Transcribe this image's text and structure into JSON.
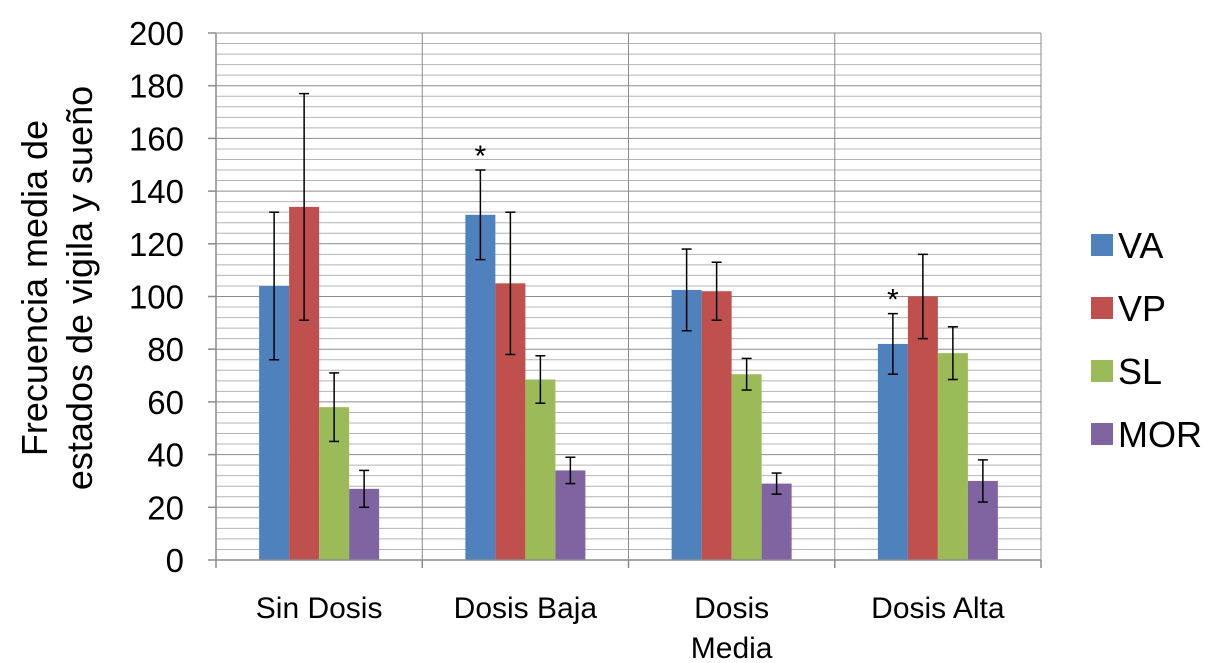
{
  "chart_data": {
    "type": "bar",
    "ylabel_lines": [
      "Frecuencia media de",
      "estados de vigila y sueño"
    ],
    "categories": [
      [
        "Sin Dosis"
      ],
      [
        "Dosis Baja"
      ],
      [
        "Dosis",
        "Media"
      ],
      [
        "Dosis Alta"
      ]
    ],
    "series": [
      {
        "name": "VA",
        "color": "#4f81bd",
        "values": [
          104,
          131,
          102.5,
          82
        ],
        "errors": [
          28,
          17,
          15.5,
          11.5
        ]
      },
      {
        "name": "VP",
        "color": "#c0504d",
        "values": [
          134,
          105,
          102,
          100
        ],
        "errors": [
          43,
          27,
          11,
          16
        ]
      },
      {
        "name": "SL",
        "color": "#9bbb59",
        "values": [
          58,
          68.5,
          70.5,
          78.5
        ],
        "errors": [
          13,
          9,
          6,
          10
        ]
      },
      {
        "name": "MOR",
        "color": "#8064a2",
        "values": [
          27,
          34,
          29,
          30
        ],
        "errors": [
          7,
          5,
          4,
          8
        ]
      }
    ],
    "annotations": [
      {
        "text": "*",
        "category": 1,
        "series": 0
      },
      {
        "text": "*",
        "category": 3,
        "series": 0
      }
    ],
    "ylim": [
      0,
      200
    ],
    "yticks": [
      "0",
      "20",
      "40",
      "60",
      "80",
      "100",
      "120",
      "140",
      "160",
      "180",
      "200"
    ],
    "grid": true,
    "legend_position": "right"
  }
}
